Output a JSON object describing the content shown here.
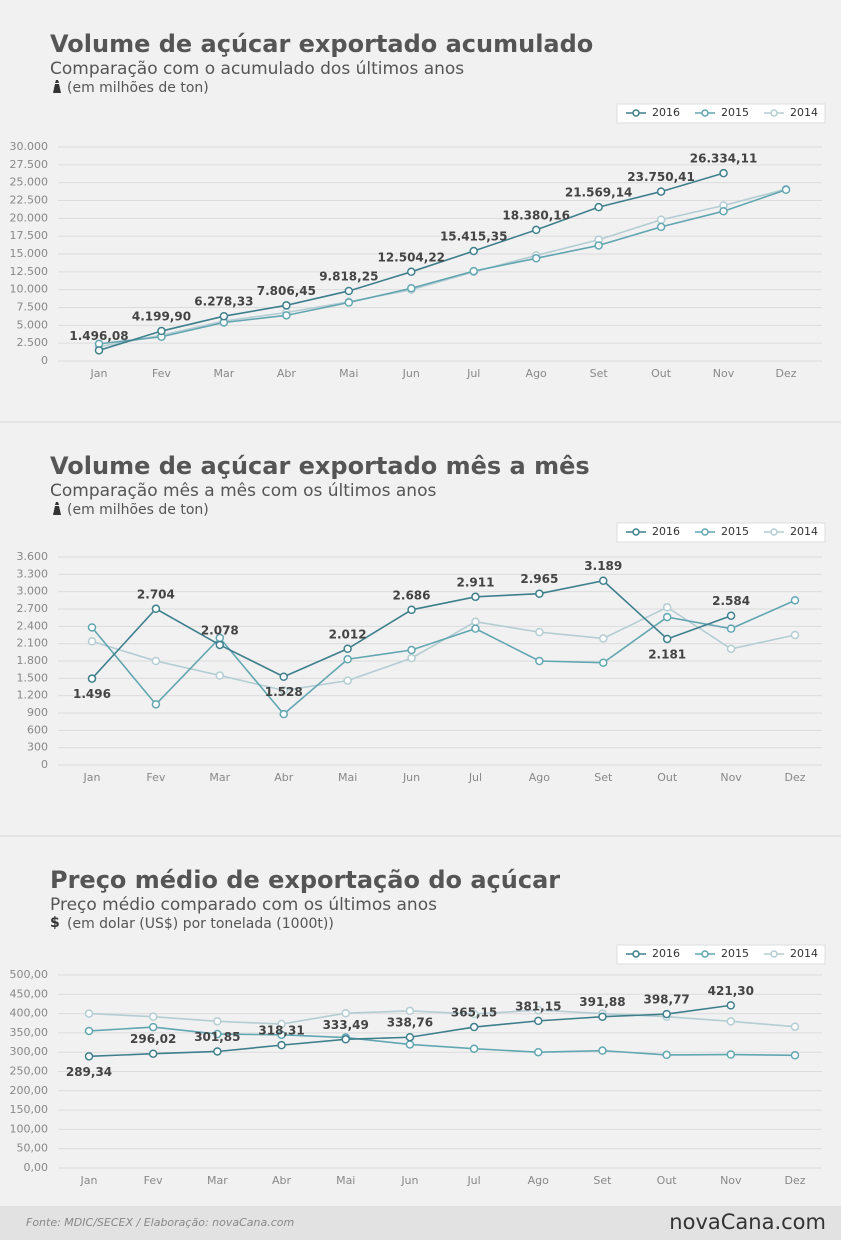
{
  "chart_data": [
    {
      "type": "line",
      "title": "Volume de açúcar exportado acumulado",
      "subtitle": "Comparação com o acumulado dos últimos anos",
      "unit": "(em milhões de ton)",
      "categories": [
        "Jan",
        "Fev",
        "Mar",
        "Abr",
        "Mai",
        "Jun",
        "Jul",
        "Ago",
        "Set",
        "Out",
        "Nov",
        "Dez"
      ],
      "series": [
        {
          "name": "2016",
          "color": "#3f7f8c",
          "values": [
            1496.08,
            4199.9,
            6278.33,
            7806.45,
            9818.25,
            12504.22,
            15415.35,
            18380.16,
            21569.14,
            23750.41,
            26334.11,
            null
          ],
          "value_labels": [
            "1.496,08",
            "4.199,90",
            "6.278,33",
            "7.806,45",
            "9.818,25",
            "12.504,22",
            "15.415,35",
            "18.380,16",
            "21.569,14",
            "23.750,41",
            "26.334,11",
            null
          ]
        },
        {
          "name": "2015",
          "color": "#62a6b1",
          "values": [
            2400,
            3400,
            5400,
            6400,
            8200,
            10200,
            12600,
            14400,
            16200,
            18800,
            21000,
            24000
          ]
        },
        {
          "name": "2014",
          "color": "#b4cdd3",
          "values": [
            2000,
            3600,
            5600,
            6800,
            8300,
            10000,
            12500,
            14800,
            17000,
            19800,
            21800,
            24100
          ]
        }
      ],
      "ylim": [
        0,
        30000
      ],
      "yticks": [
        0,
        {
          "value": 2500,
          "label": "2.500"
        },
        {
          "value": 5000,
          "label": "5.000"
        },
        {
          "value": 7500,
          "label": "7.500"
        },
        {
          "value": 10000,
          "label": "10.000"
        },
        {
          "value": 12500,
          "label": "12.500"
        },
        {
          "value": 15000,
          "label": "15.000"
        },
        {
          "value": 17500,
          "label": "17.500"
        },
        {
          "value": 20000,
          "label": "20.000"
        },
        {
          "value": 22500,
          "label": "22.500"
        },
        {
          "value": 25000,
          "label": "25.000"
        },
        {
          "value": 27500,
          "label": "27.500"
        },
        {
          "value": 30000,
          "label": "30.000"
        }
      ],
      "grid": true,
      "legend": "top-right"
    },
    {
      "type": "line",
      "title": "Volume de açúcar exportado mês a mês",
      "subtitle": "Comparação mês a mês com os últimos anos",
      "unit": "(em milhões de ton)",
      "categories": [
        "Jan",
        "Fev",
        "Mar",
        "Abr",
        "Mai",
        "Jun",
        "Jul",
        "Ago",
        "Set",
        "Out",
        "Nov",
        "Dez"
      ],
      "series": [
        {
          "name": "2016",
          "color": "#3f7f8c",
          "values": [
            1496,
            2704,
            2078,
            1528,
            2012,
            2686,
            2911,
            2965,
            3189,
            2181,
            2584,
            null
          ],
          "value_labels": [
            "1.496",
            "2.704",
            "2.078",
            "1.528",
            "2.012",
            "2.686",
            "2.911",
            "2.965",
            "3.189",
            "2.181",
            "2.584",
            null
          ]
        },
        {
          "name": "2015",
          "color": "#62a6b1",
          "values": [
            2380,
            1050,
            2200,
            880,
            1830,
            1990,
            2360,
            1800,
            1770,
            2560,
            2360,
            2850
          ]
        },
        {
          "name": "2014",
          "color": "#b4cdd3",
          "values": [
            2140,
            1800,
            1550,
            1290,
            1460,
            1850,
            2480,
            2300,
            2190,
            2730,
            2010,
            2250
          ]
        }
      ],
      "ylim": [
        0,
        3600
      ],
      "yticks": [
        0,
        300,
        600,
        900,
        {
          "value": 1200,
          "label": "1.200"
        },
        {
          "value": 1500,
          "label": "1.500"
        },
        {
          "value": 1800,
          "label": "1.800"
        },
        {
          "value": 2100,
          "label": "2.100"
        },
        {
          "value": 2400,
          "label": "2.400"
        },
        {
          "value": 2700,
          "label": "2.700"
        },
        {
          "value": 3000,
          "label": "3.000"
        },
        {
          "value": 3300,
          "label": "3.300"
        },
        {
          "value": 3600,
          "label": "3.600"
        }
      ],
      "grid": true,
      "legend": "top-right"
    },
    {
      "type": "line",
      "title": "Preço médio de exportação do açúcar",
      "subtitle": "Preço médio comparado com os últimos anos",
      "unit_icon": "$",
      "unit": "(em dolar (US$) por tonelada (1000t))",
      "categories": [
        "Jan",
        "Fev",
        "Mar",
        "Abr",
        "Mai",
        "Jun",
        "Jul",
        "Ago",
        "Set",
        "Out",
        "Nov",
        "Dez"
      ],
      "series": [
        {
          "name": "2016",
          "color": "#3f7f8c",
          "values": [
            289.34,
            296.02,
            301.85,
            318.31,
            333.49,
            338.76,
            365.15,
            381.15,
            391.88,
            398.77,
            421.3,
            null
          ],
          "value_labels": [
            "289,34",
            "296,02",
            "301,85",
            "318,31",
            "333,49",
            "338,76",
            "365,15",
            "381,15",
            "391,88",
            "398,77",
            "421,30",
            null
          ]
        },
        {
          "name": "2015",
          "color": "#62a6b1",
          "values": [
            355,
            365,
            347,
            345,
            338,
            320,
            309,
            300,
            304,
            293,
            294,
            292
          ]
        },
        {
          "name": "2014",
          "color": "#b4cdd3",
          "values": [
            400,
            392,
            380,
            373,
            401,
            407,
            399,
            409,
            400,
            392,
            380,
            366
          ]
        }
      ],
      "ylim": [
        0,
        500
      ],
      "yticks": [
        {
          "value": 0,
          "label": "0,00"
        },
        {
          "value": 50,
          "label": "50,00"
        },
        {
          "value": 100,
          "label": "100,00"
        },
        {
          "value": 150,
          "label": "150,00"
        },
        {
          "value": 200,
          "label": "200,00"
        },
        {
          "value": 250,
          "label": "250,00"
        },
        {
          "value": 300,
          "label": "300,00"
        },
        {
          "value": 350,
          "label": "350,00"
        },
        {
          "value": 400,
          "label": "400,00"
        },
        {
          "value": 450,
          "label": "450,00"
        },
        {
          "value": 500,
          "label": "500,00"
        }
      ],
      "grid": true,
      "legend": "top-right"
    }
  ],
  "footer": {
    "source": "Fonte: MDIC/SECEX  / Elaboração: novaCana.com",
    "logo": "novaCana.com"
  }
}
